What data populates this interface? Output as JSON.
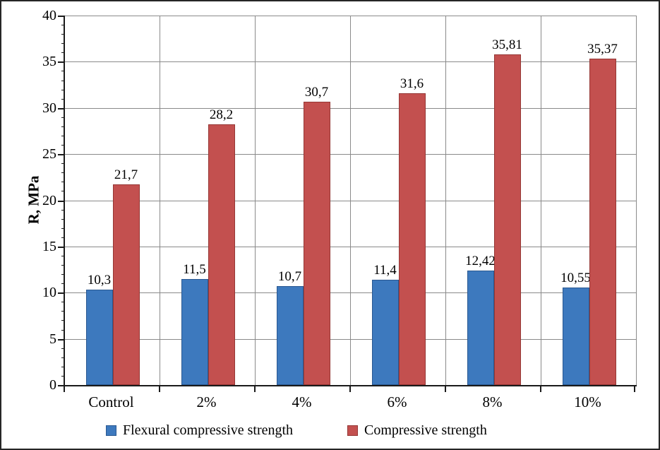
{
  "chart_data": {
    "type": "bar",
    "title": "",
    "xlabel": "",
    "ylabel": "R, MPa",
    "ylim": [
      0,
      40
    ],
    "ytick_step": 5,
    "minor_tick_step": 1,
    "yticks": [
      "0",
      "5",
      "10",
      "15",
      "20",
      "25",
      "30",
      "35",
      "40"
    ],
    "grid": true,
    "legend_position": "bottom",
    "decimal_separator": ",",
    "categories": [
      "Control",
      "2%",
      "4%",
      "6%",
      "8%",
      "10%"
    ],
    "series": [
      {
        "name": "Flexural compressive strength",
        "color": "#3D79BE",
        "border_color": "#2A5891",
        "values": [
          10.3,
          11.5,
          10.7,
          11.4,
          12.42,
          10.55
        ],
        "labels": [
          "10,3",
          "11,5",
          "10,7",
          "11,4",
          "12,42",
          "10,55"
        ]
      },
      {
        "name": "Compressive strength",
        "color": "#C3504F",
        "border_color": "#953735",
        "values": [
          21.7,
          28.2,
          30.7,
          31.6,
          35.81,
          35.37
        ],
        "labels": [
          "21,7",
          "28,2",
          "30,7",
          "31,6",
          "35,81",
          "35,37"
        ]
      }
    ]
  },
  "colors": {
    "gridline": "#8a8a8a",
    "axis": "#1a1a1a",
    "background": "#ffffff",
    "text": "#000000"
  }
}
